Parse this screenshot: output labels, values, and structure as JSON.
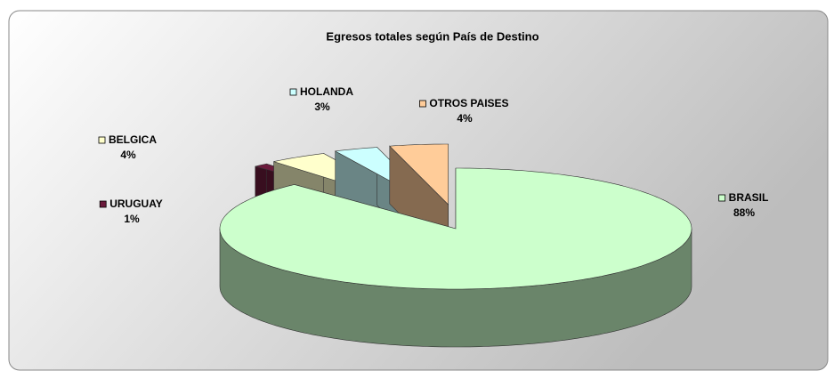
{
  "chart_data": {
    "type": "pie3d",
    "title": "Egresos totales según País de Destino",
    "categories": [
      "BRASIL",
      "URUGUAY",
      "BELGICA",
      "HOLANDA",
      "OTROS PAISES"
    ],
    "values": [
      88,
      1,
      4,
      3,
      4
    ],
    "value_labels": [
      "88%",
      "1%",
      "4%",
      "3%",
      "4%"
    ],
    "colors": [
      "#ccffcc",
      "#6b1a3c",
      "#ffffcc",
      "#ccffff",
      "#ffcc99"
    ]
  }
}
